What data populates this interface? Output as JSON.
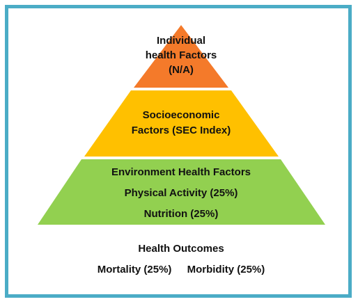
{
  "colors": {
    "frame": "#4bacc6",
    "tier_top": "#f47a2a",
    "tier_middle": "#ffc000",
    "tier_bottom": "#92d050"
  },
  "pyramid": {
    "top": {
      "lines": [
        "Individual",
        "health Factors",
        "(N/A)"
      ]
    },
    "middle": {
      "lines": [
        "Socioeconomic",
        "Factors (SEC Index)"
      ]
    },
    "bottom": {
      "lines": [
        "Environment Health Factors",
        "Physical Activity (25%)",
        "Nutrition (25%)"
      ]
    }
  },
  "outcomes": {
    "title": "Health Outcomes",
    "items": [
      "Mortality (25%)",
      "Morbidity (25%)"
    ]
  }
}
